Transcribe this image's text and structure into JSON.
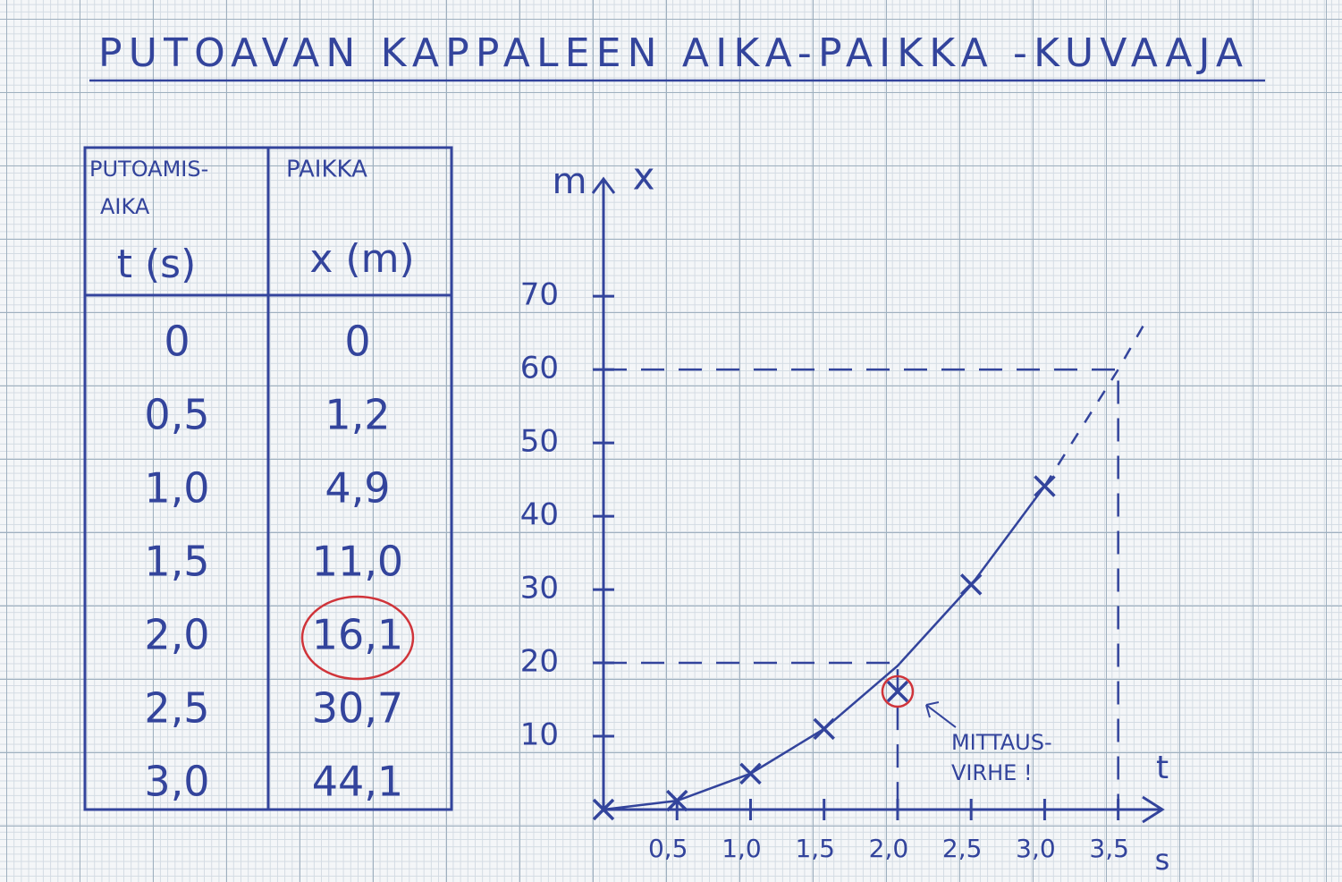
{
  "title": "PUTOAVAN KAPPALEEN AIKA-PAIKKA -KUVAAJA",
  "table": {
    "header": [
      [
        "PUTOAMIS-",
        "AIKA",
        "t (s)"
      ],
      [
        "PAIKKA",
        "x (m)"
      ]
    ],
    "rows": [
      [
        "0",
        "0"
      ],
      [
        "0,5",
        "1,2"
      ],
      [
        "1,0",
        "4,9"
      ],
      [
        "1,5",
        "11,0"
      ],
      [
        "2,0",
        "16,1"
      ],
      [
        "2,5",
        "30,7"
      ],
      [
        "3,0",
        "44,1"
      ]
    ]
  },
  "chart_data": {
    "type": "scatter",
    "x": [
      0,
      0.5,
      1.0,
      1.5,
      2.0,
      2.5,
      3.0
    ],
    "values": [
      0,
      1.2,
      4.9,
      11.0,
      16.1,
      30.7,
      44.1
    ],
    "color": "#33449c",
    "highlight_index": 4,
    "highlight_color": "#d0343a",
    "fit": [
      {
        "x": [
          0,
          0.5,
          1.0,
          1.5,
          2.0,
          2.5,
          3.0
        ],
        "values": [
          0,
          1.2,
          4.9,
          11.0,
          19.6,
          30.6,
          44.1
        ],
        "dashed": false
      },
      {
        "x": [
          3.0,
          3.5,
          3.7
        ],
        "values": [
          44.1,
          60,
          67
        ],
        "dashed": true
      }
    ],
    "guides": [
      {
        "x": 2.0,
        "y": 20
      },
      {
        "x": 3.5,
        "y": 60
      }
    ],
    "y_label": "x",
    "y_unit": "m",
    "x_label": "t",
    "x_unit": "s",
    "annotation": [
      "MITTAUS-",
      "VIRHE !"
    ],
    "xlim": [
      0,
      3.8
    ],
    "ylim": [
      0,
      86
    ],
    "xticks": [
      {
        "value": 0.5,
        "label": "0,5"
      },
      {
        "value": 1.0,
        "label": "1,0"
      },
      {
        "value": 1.5,
        "label": "1,5"
      },
      {
        "value": 2.0,
        "label": "2,0"
      },
      {
        "value": 2.5,
        "label": "2,5"
      },
      {
        "value": 3.0,
        "label": "3,0"
      },
      {
        "value": 3.5,
        "label": "3,5"
      }
    ],
    "yticks": [
      10,
      20,
      30,
      40,
      50,
      60,
      70
    ]
  }
}
